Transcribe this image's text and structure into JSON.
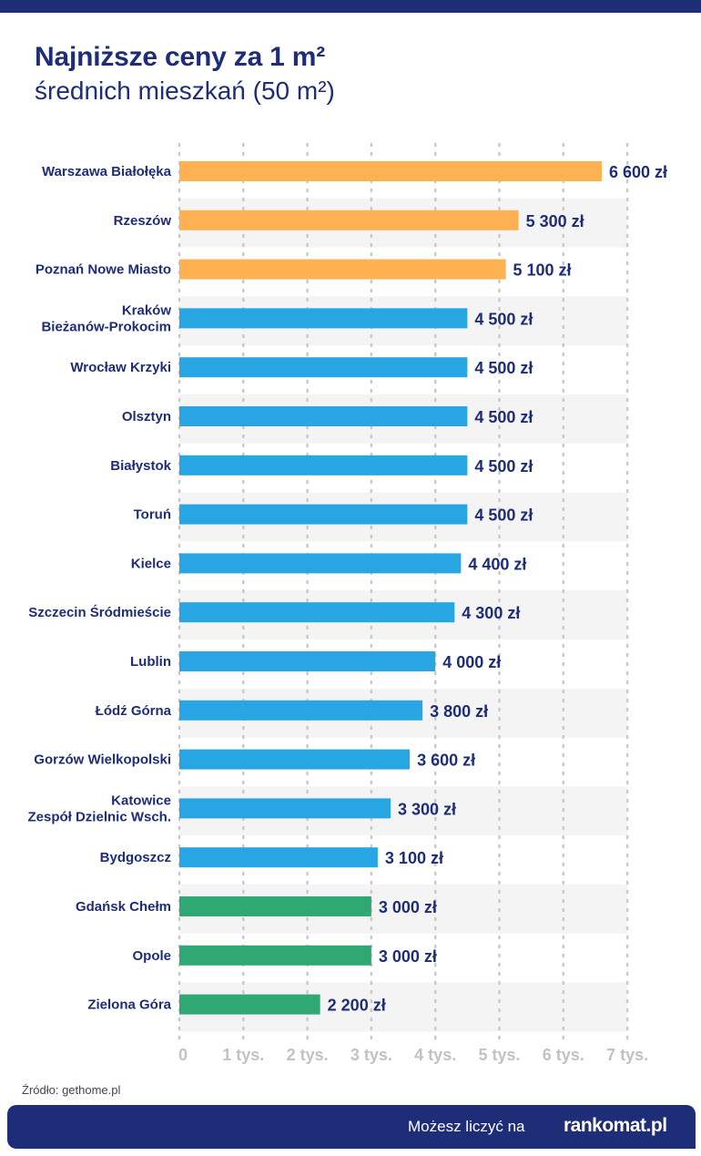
{
  "title": "Najniższe ceny za 1 m²",
  "subtitle": "średnich mieszkań (50 m²)",
  "source": "Źródło: gethome.pl",
  "footer": {
    "tagline": "Możesz liczyć na",
    "logo": "rankomat.pl"
  },
  "chart_data": {
    "type": "bar",
    "orientation": "horizontal",
    "title": "Najniższe ceny za 1 m²",
    "subtitle": "średnich mieszkań (50 m²)",
    "categories": [
      "Warszawa Białołęka",
      "Rzeszów",
      "Poznań Nowe Miasto",
      "Kraków\nBieżanów-Prokocim",
      "Wrocław Krzyki",
      "Olsztyn",
      "Białystok",
      "Toruń",
      "Kielce",
      "Szczecin Śródmieście",
      "Lublin",
      "Łódź Górna",
      "Gorzów Wielkopolski",
      "Katowice\nZespół Dzielnic Wsch.",
      "Bydgoszcz",
      "Gdańsk Chełm",
      "Opole",
      "Zielona Góra"
    ],
    "values": [
      6600,
      5300,
      5100,
      4500,
      4500,
      4500,
      4500,
      4500,
      4400,
      4300,
      4000,
      3800,
      3600,
      3300,
      3100,
      3000,
      3000,
      2200
    ],
    "data_labels": [
      "6 600 zł",
      "5 300 zł",
      "5 100 zł",
      "4 500 zł",
      "4 500 zł",
      "4 500 zł",
      "4 500 zł",
      "4 500 zł",
      "4 400 zł",
      "4 300 zł",
      "4 000 zł",
      "3 800 zł",
      "3 600 zł",
      "3 300 zł",
      "3 100 zł",
      "3 000 zł",
      "3 000 zł",
      "2 200 zł"
    ],
    "groups": [
      "top",
      "top",
      "top",
      "mid",
      "mid",
      "mid",
      "mid",
      "mid",
      "mid",
      "mid",
      "mid",
      "mid",
      "mid",
      "mid",
      "mid",
      "low",
      "low",
      "low"
    ],
    "colors": {
      "top": "#fdb150",
      "mid": "#27a6e3",
      "low": "#30a874"
    },
    "xlim": [
      0,
      7000
    ],
    "x_ticks": [
      0,
      1000,
      2000,
      3000,
      4000,
      5000,
      6000,
      7000
    ],
    "x_tick_labels": [
      "0",
      "1 tys.",
      "2 tys.",
      "3 tys.",
      "4 tys.",
      "5 tys.",
      "6 tys.",
      "7 tys."
    ],
    "grid": "vertical-dotted",
    "xlabel": "",
    "ylabel": ""
  }
}
